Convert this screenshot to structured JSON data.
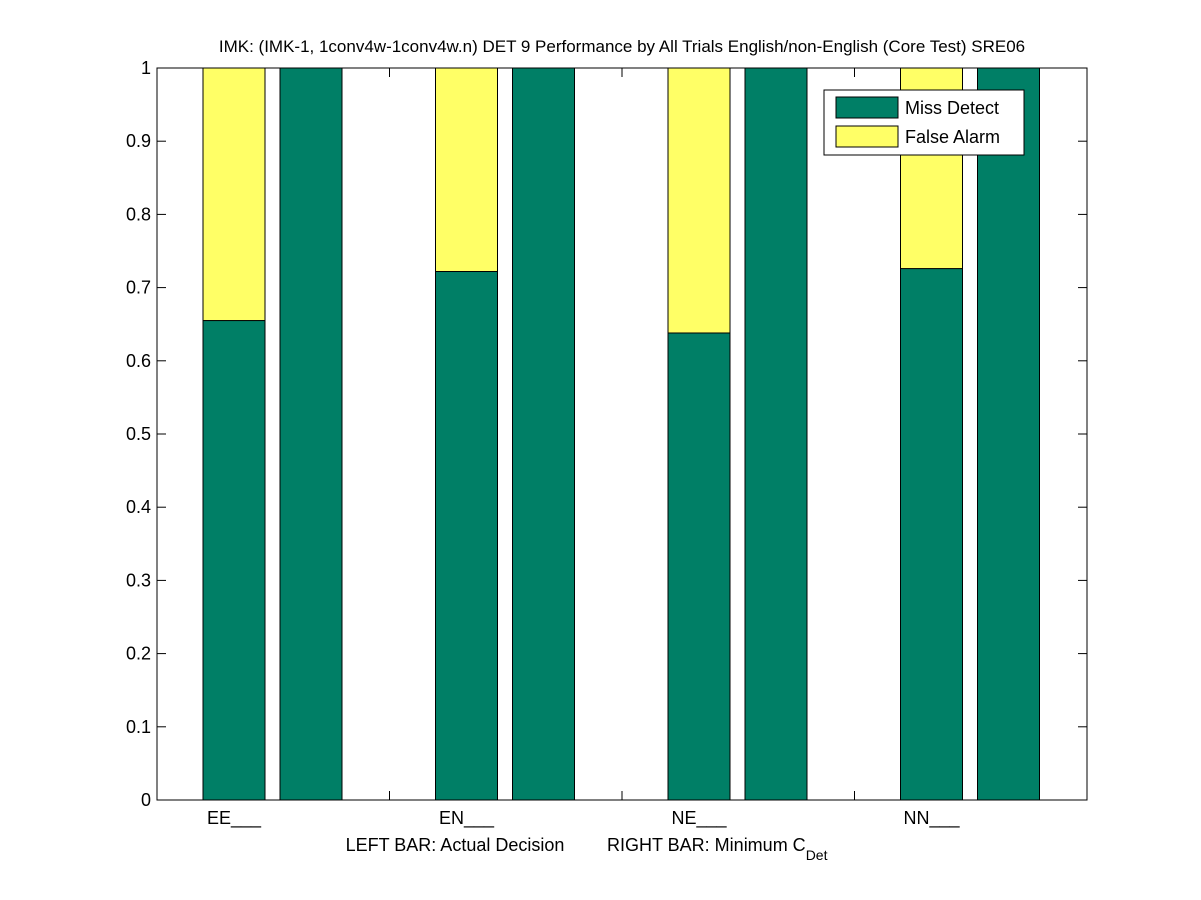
{
  "chart_data": {
    "type": "bar",
    "stacked": true,
    "title": "IMK: (IMK-1, 1conv4w-1conv4w.n) DET 9 Performance by All Trials English/non-English (Core Test) SRE06",
    "xlabel_left": "LEFT BAR: Actual Decision",
    "xlabel_right_prefix": "RIGHT BAR: Minimum C",
    "xlabel_right_sub": "Det",
    "categories": [
      "EE___",
      "EN___",
      "NE___",
      "NN___"
    ],
    "yticks": [
      "0",
      "0.1",
      "0.2",
      "0.3",
      "0.4",
      "0.5",
      "0.6",
      "0.7",
      "0.8",
      "0.9",
      "1"
    ],
    "ylim": [
      0,
      1
    ],
    "grid": false,
    "legend_position": "top-right",
    "series": [
      {
        "name": "Miss Detect",
        "color": "#007f66",
        "actual_decision": [
          0.655,
          0.722,
          0.638,
          0.726
        ],
        "minimum_cdet": [
          1.0,
          1.0,
          1.0,
          1.0
        ]
      },
      {
        "name": "False Alarm",
        "color": "#ffff66",
        "actual_decision": [
          0.345,
          0.278,
          0.362,
          0.274
        ],
        "minimum_cdet": [
          0.0,
          0.0,
          0.0,
          0.0
        ]
      }
    ]
  }
}
